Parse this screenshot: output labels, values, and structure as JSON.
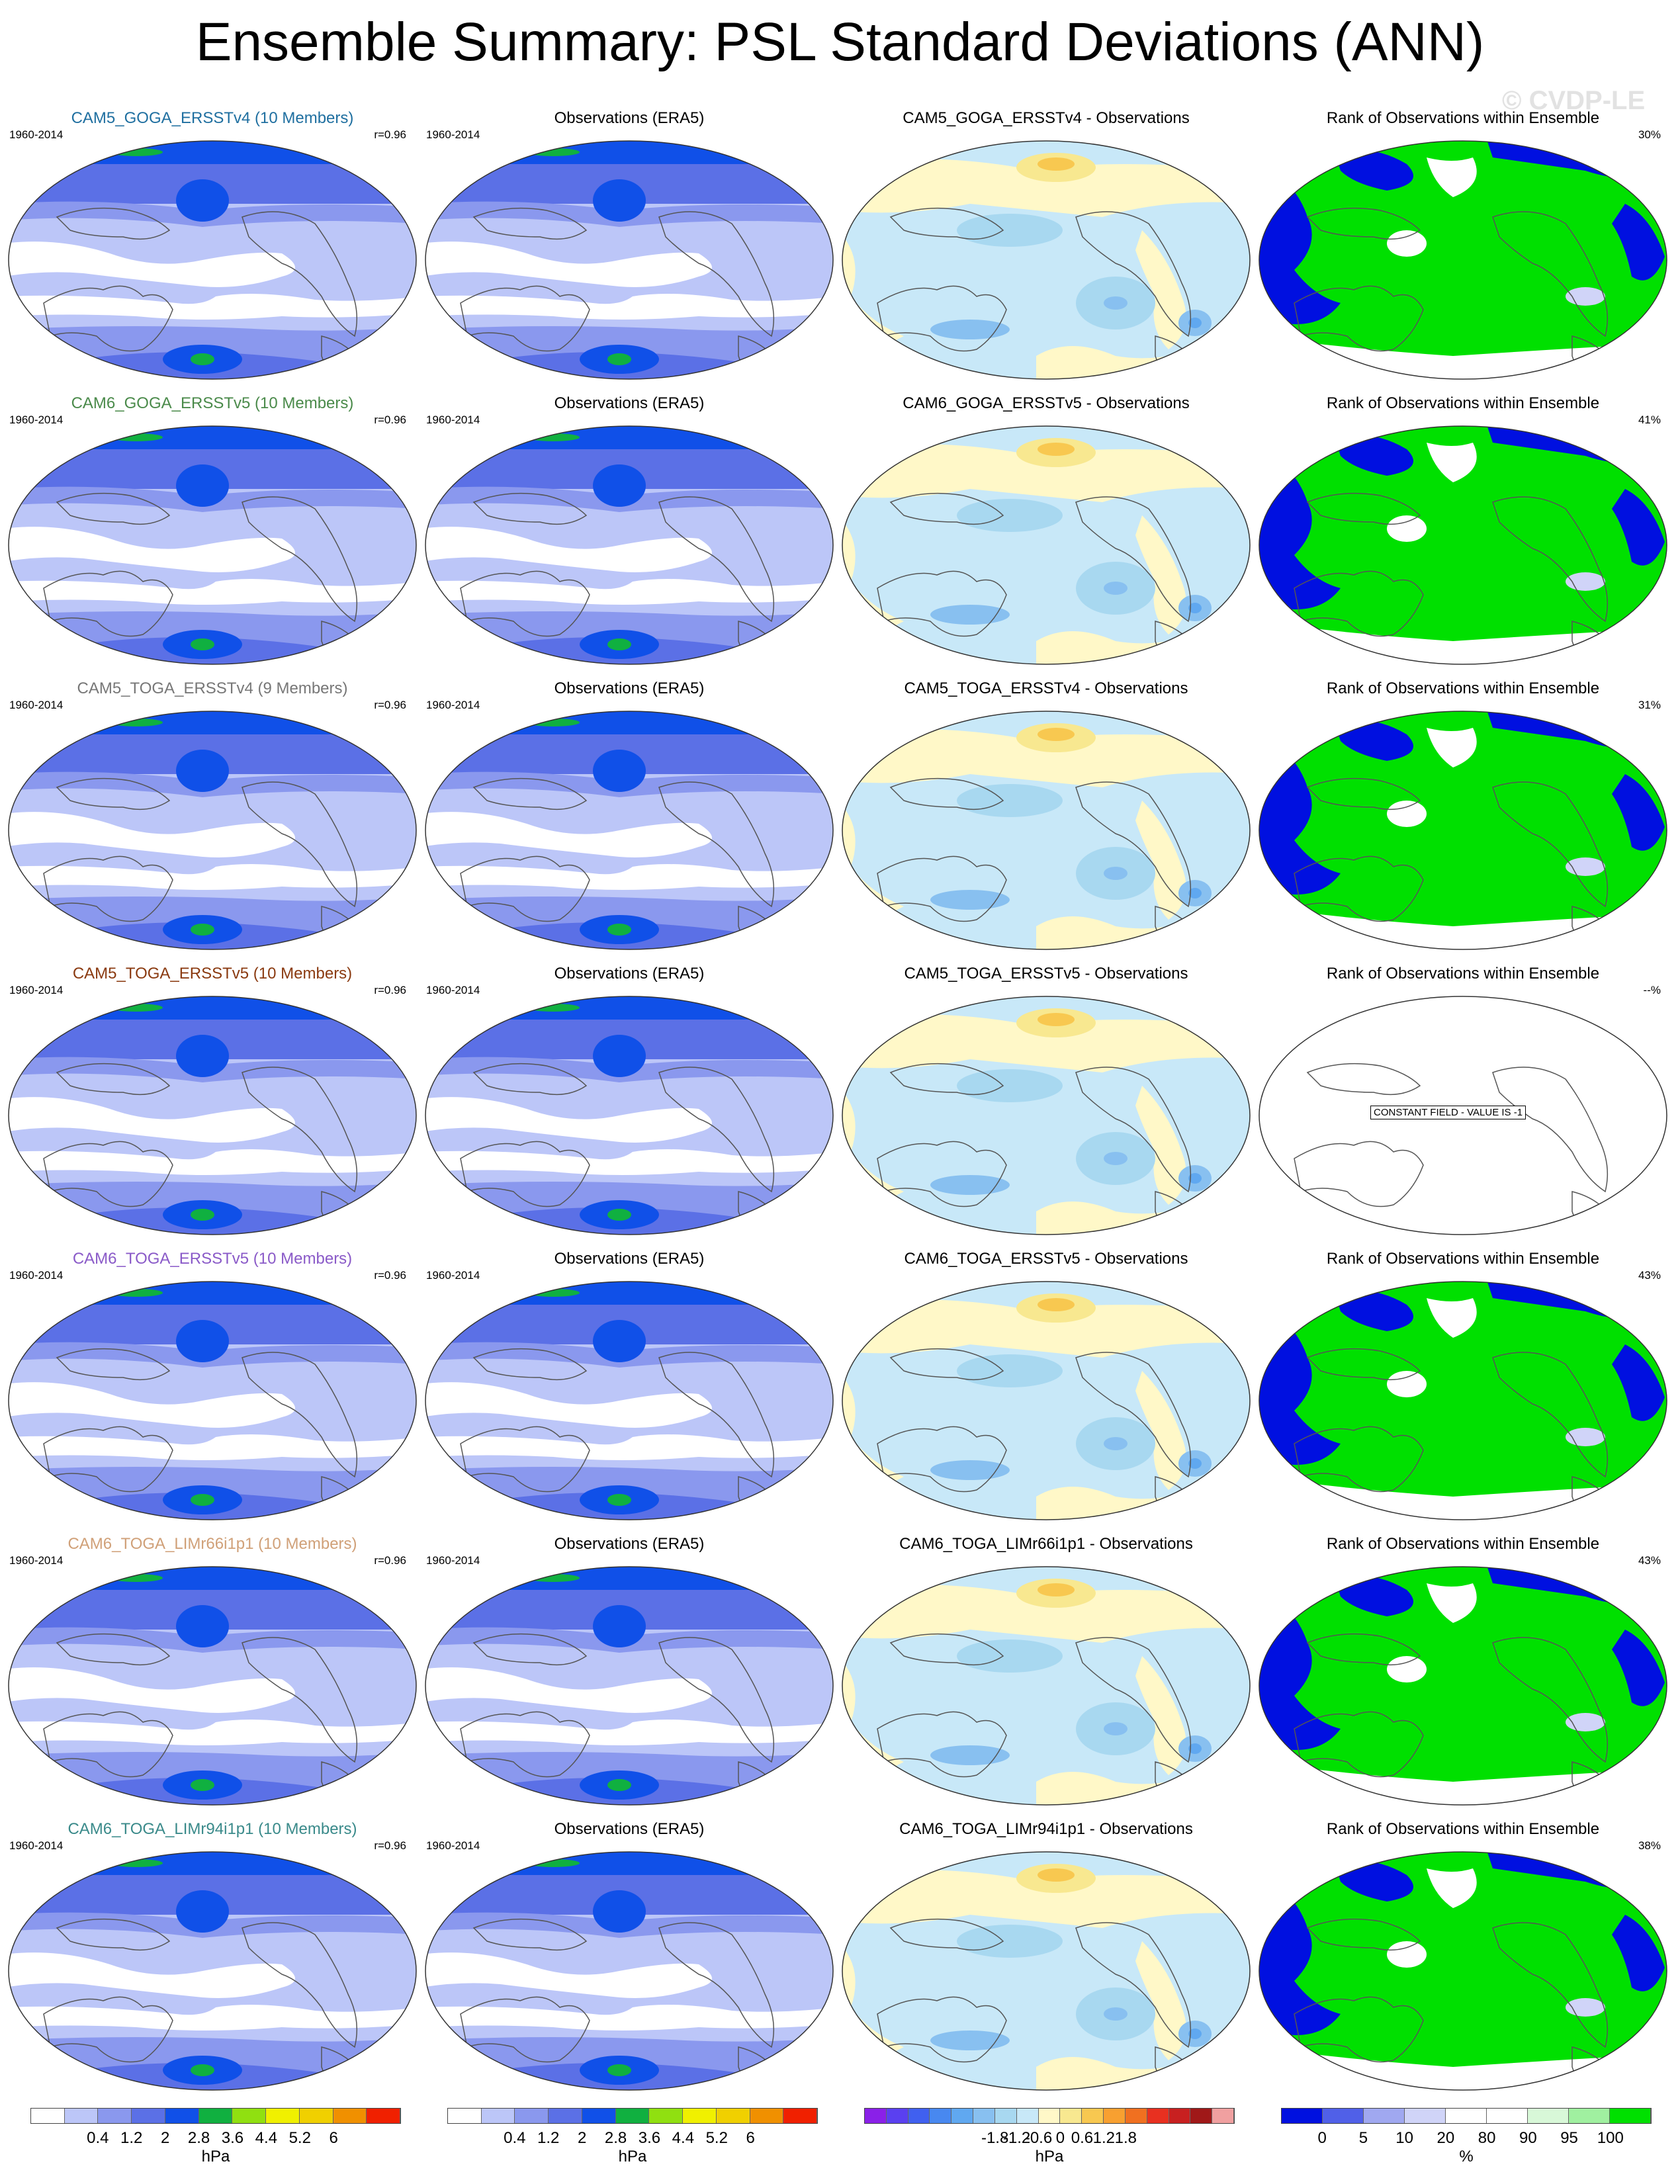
{
  "title": "Ensemble Summary: PSL Standard Deviations (ANN)",
  "watermark": "© CVDP-LE",
  "rows": [
    {
      "model": "CAM5_GOGA_ERSSTv4 (10 Members)",
      "model_color": "#1f6fa0",
      "years": "1960-2014",
      "r": "r=0.96",
      "obs_title": "Observations (ERA5)",
      "obs_years": "1960-2014",
      "diff_title": "CAM5_GOGA_ERSSTv4 - Observations",
      "rank_title": "Rank of Observations within Ensemble",
      "rank_pct": "30%",
      "rank_type": "normal"
    },
    {
      "model": "CAM6_GOGA_ERSSTv5 (10 Members)",
      "model_color": "#4a8a4a",
      "years": "1960-2014",
      "r": "r=0.96",
      "obs_title": "Observations (ERA5)",
      "obs_years": "1960-2014",
      "diff_title": "CAM6_GOGA_ERSSTv5 - Observations",
      "rank_title": "Rank of Observations within Ensemble",
      "rank_pct": "41%",
      "rank_type": "normal"
    },
    {
      "model": "CAM5_TOGA_ERSSTv4 (9 Members)",
      "model_color": "#777777",
      "years": "1960-2014",
      "r": "r=0.96",
      "obs_title": "Observations (ERA5)",
      "obs_years": "1960-2014",
      "diff_title": "CAM5_TOGA_ERSSTv4 - Observations",
      "rank_title": "Rank of Observations within Ensemble",
      "rank_pct": "31%",
      "rank_type": "normal"
    },
    {
      "model": "CAM5_TOGA_ERSSTv5 (10 Members)",
      "model_color": "#8a3a10",
      "years": "1960-2014",
      "r": "r=0.96",
      "obs_title": "Observations (ERA5)",
      "obs_years": "1960-2014",
      "diff_title": "CAM5_TOGA_ERSSTv5 - Observations",
      "rank_title": "Rank of Observations within Ensemble",
      "rank_pct": "--%",
      "rank_type": "constant",
      "constant_label": "CONSTANT FIELD - VALUE IS -1"
    },
    {
      "model": "CAM6_TOGA_ERSSTv5 (10 Members)",
      "model_color": "#8a5ac8",
      "years": "1960-2014",
      "r": "r=0.96",
      "obs_title": "Observations (ERA5)",
      "obs_years": "1960-2014",
      "diff_title": "CAM6_TOGA_ERSSTv5 - Observations",
      "rank_title": "Rank of Observations within Ensemble",
      "rank_pct": "43%",
      "rank_type": "normal"
    },
    {
      "model": "CAM6_TOGA_LIMr66i1p1 (10 Members)",
      "model_color": "#d0a078",
      "years": "1960-2014",
      "r": "r=0.96",
      "obs_title": "Observations (ERA5)",
      "obs_years": "1960-2014",
      "diff_title": "CAM6_TOGA_LIMr66i1p1 - Observations",
      "rank_title": "Rank of Observations within Ensemble",
      "rank_pct": "43%",
      "rank_type": "normal"
    },
    {
      "model": "CAM6_TOGA_LIMr94i1p1 (10 Members)",
      "model_color": "#3a8a8a",
      "years": "1960-2014",
      "r": "r=0.96",
      "obs_title": "Observations (ERA5)",
      "obs_years": "1960-2014",
      "diff_title": "CAM6_TOGA_LIMr94i1p1 - Observations",
      "rank_title": "Rank of Observations within Ensemble",
      "rank_pct": "38%",
      "rank_type": "normal"
    }
  ],
  "colorbars": {
    "std": {
      "colors": [
        "#ffffff",
        "#bcc6f8",
        "#8a98ee",
        "#5b70e6",
        "#1050e8",
        "#10b040",
        "#90e010",
        "#f0f000",
        "#f0d000",
        "#f09000",
        "#f02000"
      ],
      "ticks": [
        "0.4",
        "1.2",
        "2",
        "2.8",
        "3.6",
        "4.4",
        "5.2",
        "6"
      ],
      "unit": "hPa"
    },
    "std_obs": {
      "colors": [
        "#ffffff",
        "#bcc6f8",
        "#8a98ee",
        "#5b70e6",
        "#1050e8",
        "#10b040",
        "#90e010",
        "#f0f000",
        "#f0d000",
        "#f09000",
        "#f02000"
      ],
      "ticks": [
        "0.4",
        "1.2",
        "2",
        "2.8",
        "3.6",
        "4.4",
        "5.2",
        "6"
      ],
      "unit": "hPa"
    },
    "diff": {
      "colors": [
        "#8a20e8",
        "#5a40f0",
        "#4060f0",
        "#4888f0",
        "#60a8f0",
        "#88c0f0",
        "#a8d8f0",
        "#c8e8f8",
        "#fff8c8",
        "#f8e890",
        "#f8c850",
        "#f8a030",
        "#f07020",
        "#e83020",
        "#c82020",
        "#a01818",
        "#f0a0a0"
      ],
      "ticks": [
        "-1.8",
        "-1.2",
        "-0.6",
        "0",
        "0.6",
        "1.2",
        "1.8"
      ],
      "unit": "hPa"
    },
    "rank": {
      "colors": [
        "#0010e0",
        "#5060e8",
        "#a0a8f0",
        "#d0d4f8",
        "#ffffff",
        "#ffffff",
        "#d8f8d8",
        "#a0f0a0",
        "#00e000"
      ],
      "ticks": [
        "0",
        "5",
        "10",
        "20",
        "80",
        "90",
        "95",
        "100"
      ],
      "unit": "%"
    }
  }
}
